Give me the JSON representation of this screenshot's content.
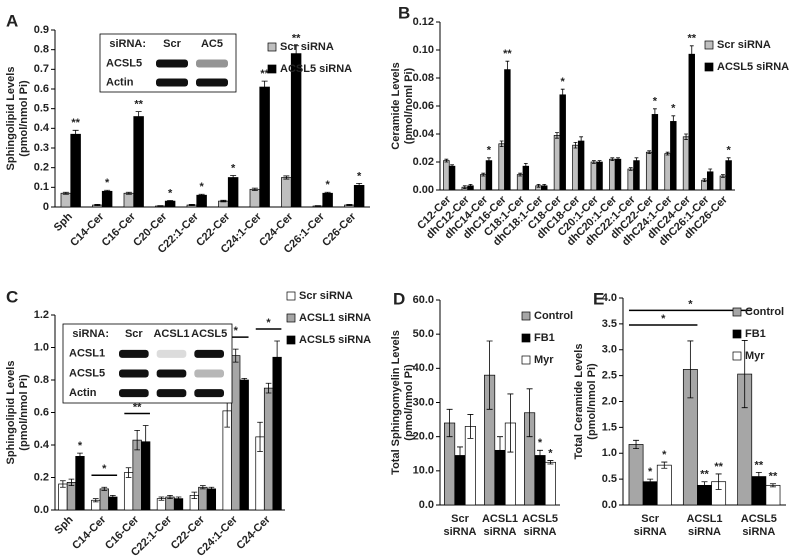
{
  "chart_data": [
    {
      "type": "bar",
      "panel_label": "A",
      "ylabel": [
        "Sphingolipid Levels",
        "(pmol/nmol Pi)"
      ],
      "categories": [
        "Sph",
        "C14-Cer",
        "C16-Cer",
        "C20-Cer",
        "C22:1-Cer",
        "C22-Cer",
        "C24:1-Cer",
        "C24-Cer",
        "C26:1-Cer",
        "C26-Cer"
      ],
      "series": [
        {
          "name": "Scr siRNA",
          "color": "#bfbfbf",
          "values": [
            0.07,
            0.01,
            0.07,
            0.005,
            0.01,
            0.03,
            0.09,
            0.15,
            0.005,
            0.01
          ],
          "errors": [
            0.005,
            0.003,
            0.005,
            0.002,
            0.003,
            0.004,
            0.006,
            0.008,
            0.002,
            0.003
          ],
          "significance": [
            null,
            null,
            null,
            null,
            null,
            null,
            null,
            null,
            null,
            null
          ]
        },
        {
          "name": "ACSL5 siRNA",
          "color": "#000000",
          "values": [
            0.37,
            0.08,
            0.46,
            0.03,
            0.06,
            0.15,
            0.61,
            0.78,
            0.07,
            0.11
          ],
          "errors": [
            0.02,
            0.005,
            0.025,
            0.003,
            0.005,
            0.01,
            0.03,
            0.04,
            0.005,
            0.01
          ],
          "significance": [
            "**",
            "*",
            "**",
            "*",
            "*",
            "*",
            "**",
            "**",
            "*",
            "*"
          ]
        }
      ],
      "ylim": [
        0,
        0.9
      ],
      "yticks": [
        0,
        0.1,
        0.2,
        0.3,
        0.4,
        0.5,
        0.6,
        0.7,
        0.8,
        0.9
      ],
      "legend": "upper right",
      "inset": {
        "header": "siRNA:",
        "lanes": [
          "Scr",
          "AC5"
        ],
        "rows": [
          "ACSL5",
          "Actin"
        ]
      }
    },
    {
      "type": "bar",
      "panel_label": "B",
      "ylabel": [
        "Ceramide Levels",
        "(pmol/noml Pi)"
      ],
      "categories": [
        "C12-Cer",
        "dhC12-Cer",
        "dhC14-Cer",
        "dhC16-Cer",
        "C18:1-Cer",
        "dhC18:1-Cer",
        "C18-Cer",
        "dhC18-Cer",
        "C20:1-Cer",
        "dhC20:1-Cer",
        "dhC22:1-Cer",
        "dhC22-Cer",
        "dhC24:1-Cer",
        "dhC24-Cer",
        "dhC26:1-Cer",
        "dhC26-Cer"
      ],
      "series": [
        {
          "name": "Scr siRNA",
          "color": "#bfbfbf",
          "values": [
            0.021,
            0.002,
            0.011,
            0.033,
            0.011,
            0.003,
            0.039,
            0.032,
            0.02,
            0.022,
            0.015,
            0.027,
            0.026,
            0.038,
            0.007,
            0.01
          ],
          "errors": [
            0.001,
            0.001,
            0.001,
            0.002,
            0.001,
            0.001,
            0.002,
            0.002,
            0.001,
            0.001,
            0.001,
            0.001,
            0.001,
            0.002,
            0.001,
            0.001
          ],
          "significance": [
            null,
            null,
            null,
            null,
            null,
            null,
            null,
            null,
            null,
            null,
            null,
            null,
            null,
            null,
            null,
            null
          ]
        },
        {
          "name": "ACSL5 siRNA",
          "color": "#000000",
          "values": [
            0.017,
            0.003,
            0.021,
            0.086,
            0.017,
            0.003,
            0.068,
            0.035,
            0.02,
            0.022,
            0.021,
            0.054,
            0.049,
            0.097,
            0.013,
            0.021
          ],
          "errors": [
            0.001,
            0.001,
            0.002,
            0.006,
            0.002,
            0.001,
            0.004,
            0.003,
            0.001,
            0.001,
            0.002,
            0.004,
            0.004,
            0.006,
            0.002,
            0.002
          ],
          "significance": [
            null,
            null,
            "*",
            "**",
            null,
            null,
            "*",
            null,
            null,
            null,
            null,
            "*",
            "*",
            "**",
            null,
            "*"
          ]
        }
      ],
      "ylim": [
        0,
        0.12
      ],
      "yticks": [
        {
          "value": 0,
          "label": "0.00"
        },
        0.02,
        0.04,
        0.06,
        0.08,
        {
          "value": 0.1,
          "label": "0.10"
        },
        0.12
      ],
      "legend": "upper right"
    },
    {
      "type": "bar",
      "panel_label": "C",
      "ylabel": [
        "Sphingolipid Levels",
        "(pmol/nmol Pi)"
      ],
      "categories": [
        "Sph",
        "C14-Cer",
        "C16-Cer",
        "C22:1-Cer",
        "C22-Cer",
        "C24:1-Cer",
        "C24-Cer"
      ],
      "series": [
        {
          "name": "Scr siRNA",
          "color": "#ffffff",
          "values": [
            0.16,
            0.06,
            0.23,
            0.07,
            0.09,
            0.61,
            0.45
          ],
          "errors": [
            0.02,
            0.01,
            0.03,
            0.01,
            0.02,
            0.1,
            0.09
          ],
          "significance": [
            null,
            null,
            null,
            null,
            null,
            null,
            null
          ]
        },
        {
          "name": "ACSL1 siRNA",
          "color": "#a6a6a6",
          "values": [
            0.17,
            0.13,
            0.43,
            0.08,
            0.14,
            0.95,
            0.75
          ],
          "errors": [
            0.02,
            0.01,
            0.06,
            0.01,
            0.01,
            0.04,
            0.03
          ],
          "significance": [
            null,
            null,
            null,
            null,
            null,
            null,
            null
          ]
        },
        {
          "name": "ACSL5 siRNA",
          "color": "#000000",
          "values": [
            0.33,
            0.08,
            0.42,
            0.07,
            0.13,
            0.8,
            0.94
          ],
          "errors": [
            0.02,
            0.01,
            0.1,
            0.01,
            0.01,
            0.01,
            0.1
          ],
          "significance": [
            "*",
            null,
            null,
            null,
            null,
            null,
            null
          ]
        }
      ],
      "ylim": [
        0,
        1.2
      ],
      "yticks": [
        {
          "value": 0,
          "label": "0.0"
        },
        0.2,
        0.4,
        0.6,
        0.8,
        {
          "value": 1,
          "label": "1.0"
        },
        1.2
      ],
      "legend": "upper right",
      "brackets": [
        {
          "label": "*",
          "from": "C14-Cer",
          "to": "C14-Cer"
        },
        {
          "label": "**",
          "from": "C16-Cer",
          "to": "C16-Cer"
        },
        {
          "label": "*",
          "from": "C24:1-Cer",
          "to": "C24:1-Cer"
        },
        {
          "label": "*",
          "from": "C24-Cer",
          "to": "C24-Cer"
        }
      ],
      "inset": {
        "header": "siRNA:",
        "lanes": [
          "Scr",
          "ACSL1",
          "ACSL5"
        ],
        "rows": [
          "ACSL1",
          "ACSL5",
          "Actin"
        ]
      }
    },
    {
      "type": "bar",
      "panel_label": "D",
      "ylabel": [
        "Total Sphingomyelin Levels",
        "(pmol/nmol Pi)"
      ],
      "categories": [
        "Scr siRNA",
        "ACSL1 siRNA",
        "ACSL5 siRNA"
      ],
      "series": [
        {
          "name": "Control",
          "color": "#a6a6a6",
          "values": [
            24,
            38,
            27
          ],
          "errors": [
            4,
            10,
            7
          ],
          "significance": [
            null,
            null,
            null
          ]
        },
        {
          "name": "FB1",
          "color": "#000000",
          "values": [
            14.5,
            16,
            14.5
          ],
          "errors": [
            2.5,
            4,
            1.5
          ],
          "significance": [
            null,
            null,
            "*"
          ]
        },
        {
          "name": "Myr",
          "color": "#ffffff",
          "values": [
            23,
            24,
            12.5
          ],
          "errors": [
            3.5,
            8.5,
            0.5
          ],
          "significance": [
            null,
            null,
            "*"
          ]
        }
      ],
      "ylim": [
        0,
        60
      ],
      "yticks": [
        {
          "value": 0,
          "label": "0.0"
        },
        {
          "value": 10,
          "label": "10.0"
        },
        {
          "value": 20,
          "label": "20.0"
        },
        {
          "value": 30,
          "label": "30.0"
        },
        {
          "value": 40,
          "label": "40.0"
        },
        {
          "value": 50,
          "label": "50.0"
        },
        {
          "value": 60,
          "label": "60.0"
        }
      ],
      "legend": "upper right"
    },
    {
      "type": "bar",
      "panel_label": "E",
      "ylabel": [
        "Total Ceramide Levels",
        "(pmol/nmol Pi)"
      ],
      "categories": [
        "Scr siRNA",
        "ACSL1 siRNA",
        "ACSL5 siRNA"
      ],
      "series": [
        {
          "name": "Control",
          "color": "#a6a6a6",
          "values": [
            1.17,
            2.62,
            2.53
          ],
          "errors": [
            0.08,
            0.55,
            0.65
          ],
          "significance": [
            null,
            null,
            null
          ]
        },
        {
          "name": "FB1",
          "color": "#000000",
          "values": [
            0.45,
            0.38,
            0.55
          ],
          "errors": [
            0.05,
            0.07,
            0.08
          ],
          "significance": [
            "*",
            "**",
            "**"
          ]
        },
        {
          "name": "Myr",
          "color": "#ffffff",
          "values": [
            0.77,
            0.45,
            0.38
          ],
          "errors": [
            0.06,
            0.15,
            0.03
          ],
          "significance": [
            "*",
            "**",
            "**"
          ]
        }
      ],
      "ylim": [
        0,
        4
      ],
      "yticks": [
        {
          "value": 0,
          "label": "0.0"
        },
        0.5,
        {
          "value": 1,
          "label": "1.0"
        },
        1.5,
        {
          "value": 2,
          "label": "2.0"
        },
        2.5,
        {
          "value": 3,
          "label": "3.0"
        },
        3.5,
        {
          "value": 4,
          "label": "4.0"
        }
      ],
      "legend": "upper right",
      "brackets": [
        {
          "label": "*",
          "from": "Scr siRNA",
          "to": "ACSL1 siRNA"
        },
        {
          "label": "*",
          "from": "Scr siRNA",
          "to": "ACSL5 siRNA"
        }
      ]
    }
  ]
}
